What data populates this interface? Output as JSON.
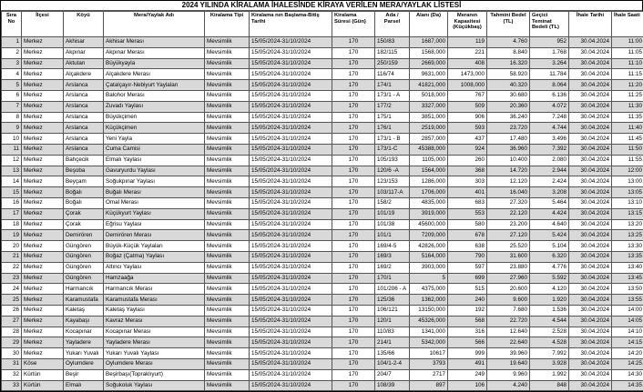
{
  "title": "2024 YILINDA KİRALAMA İHALESİNDE KİRAYA VERİLEN MERA/YAYLAK LİSTESİ",
  "table": {
    "columns": [
      {
        "label": "Sıra No"
      },
      {
        "label": "İlçesi"
      },
      {
        "label": "Köyü"
      },
      {
        "label": "Mera/Yaylak Adı"
      },
      {
        "label": "Kiralama Tipi"
      },
      {
        "label": "Kiralama nın Başlama-Bitiş Tarihi"
      },
      {
        "label": "Kiralama Süresi (Gün)"
      },
      {
        "label": "Ada / Parsel"
      },
      {
        "label": "Alanı (Da)"
      },
      {
        "label": "Meranın Kapasitesi (Küçükbaş)"
      },
      {
        "label": "Tahmini Bedel (TL)"
      },
      {
        "label": "Geçici Teminat Bedeli (TL)"
      },
      {
        "label": "İhale Tarihi"
      },
      {
        "label": "İhale Saati"
      }
    ],
    "rows": [
      [
        "1",
        "Merkez",
        "Akhisar",
        "Akhisar Merası",
        "Mevsimlik",
        "15/05/2024-31/10/2024",
        "170",
        "150/83",
        "1687,000",
        "119",
        "4.760",
        "952",
        "30.04.2024",
        "11:00"
      ],
      [
        "2",
        "Merkez",
        "Akpınar",
        "Akpınar Merası",
        "Mevsimlik",
        "15/05/2024-31/10/2024",
        "170",
        "182/115",
        "1568,000",
        "221",
        "8.840",
        "1.768",
        "30.04.2024",
        "11:05"
      ],
      [
        "3",
        "Merkez",
        "Aktutan",
        "Büyükyayla",
        "Mevsimlik",
        "15/05/2024-31/10/2024",
        "170",
        "250/159",
        "2669,000",
        "408",
        "16.320",
        "3.264",
        "30.04.2024",
        "11:10"
      ],
      [
        "4",
        "Merkez",
        "Alçakdere",
        "Alçakdere Merası",
        "Mevsimlik",
        "15/05/2024-31/10/2024",
        "170",
        "116/74",
        "9631,000",
        "1473,000",
        "58.920",
        "11.784",
        "30.04.2024",
        "11:15"
      ],
      [
        "5",
        "Merkez",
        "Arslanca",
        "Çatalçayır-Nebiyurt Yaylaları",
        "Mevsimlik",
        "15/05/2024-31/10/2024",
        "170",
        "174/1",
        "41821,000",
        "1008,000",
        "40.320",
        "8.064",
        "30.04.2024",
        "11:20"
      ],
      [
        "6",
        "Merkez",
        "Arslanca",
        "Balohor Merası",
        "Mevsimlik",
        "15/05/2024-31/10/2024",
        "170",
        "173/1 - A",
        "5018,000",
        "767",
        "30.680",
        "6.136",
        "30.04.2024",
        "11:25"
      ],
      [
        "7",
        "Merkez",
        "Arslanca",
        "Zuvadı Yaylası",
        "Mevsimlik",
        "15/05/2024-31/10/2024",
        "170",
        "177/2",
        "3327,000",
        "509",
        "20.360",
        "4.072",
        "30.04.2024",
        "11:30"
      ],
      [
        "8",
        "Merkez",
        "Arslanca",
        "Büyükçimen",
        "Mevsimlik",
        "15/05/2024-31/10/2024",
        "170",
        "175/1",
        "3851,000",
        "906",
        "36.240",
        "7.248",
        "30.04.2024",
        "11:35"
      ],
      [
        "9",
        "Merkez",
        "Arslanca",
        "Küçükçimen",
        "Mevsimlik",
        "15/05/2024-31/10/2024",
        "170",
        "176/1",
        "2519,000",
        "593",
        "23.720",
        "4.744",
        "30.04.2024",
        "11:40"
      ],
      [
        "10",
        "Merkez",
        "Arslanca",
        "Yeni Yayla",
        "Mevsimlik",
        "15/05/2024-31/10/2024",
        "170",
        "173/1 - B",
        "2857,000",
        "437",
        "17.480",
        "3.496",
        "30.04.2024",
        "11:45"
      ],
      [
        "11",
        "Merkez",
        "Arslanca",
        "Cuma Camisi",
        "Mevsimlik",
        "15/05/2024-31/10/2024",
        "170",
        "173/1-C",
        "45388,000",
        "924",
        "36.960",
        "7.392",
        "30.04.2024",
        "11:50"
      ],
      [
        "12",
        "Merkez",
        "Bahçecik",
        "Elmalı Yaylası",
        "Mevsimlik",
        "15/05/2024-31/10/2024",
        "170",
        "105/193",
        "1105,000",
        "260",
        "10.400",
        "2.080",
        "30.04.2024",
        "11:55"
      ],
      [
        "13",
        "Merkez",
        "Beşoba",
        "Gavuryurdu Yaylası",
        "Mevsimlik",
        "15/05/2024-31/10/2024",
        "170",
        "120/6 -A",
        "1564,000",
        "368",
        "14.720",
        "2.944",
        "30.04.2024",
        "12:00"
      ],
      [
        "14",
        "Merkez",
        "Beyçam",
        "Soğukpınar Yaylası",
        "Mevsimlik",
        "15/05/2024-31/10/2024",
        "170",
        "123/153",
        "1286,000",
        "303",
        "12.120",
        "2.424",
        "30.04.2024",
        "13:00"
      ],
      [
        "15",
        "Merkez",
        "Boğalı",
        "Buğalı Merası",
        "Mevsimlik",
        "15/05/2024-31/10/2024",
        "170",
        "103/117-A",
        "1706,000",
        "401",
        "16.040",
        "3.208",
        "30.04.2024",
        "13:05"
      ],
      [
        "16",
        "Merkez",
        "Boğalı",
        "Omal Merası",
        "Mevsimlik",
        "15/05/2024-31/10/2024",
        "170",
        "158/2",
        "4835,000",
        "683",
        "27.320",
        "5.464",
        "30.04.2024",
        "13:10"
      ],
      [
        "17",
        "Merkez",
        "Çorak",
        "Küçükyurt Yaylası",
        "Mevsimlik",
        "15/05/2024-31/10/2024",
        "170",
        "101/19",
        "3919,000",
        "553",
        "22.120",
        "4.424",
        "30.04.2024",
        "13:15"
      ],
      [
        "18",
        "Merkez",
        "Çorak",
        "Eğrisu Yaylası",
        "Mevsimlik",
        "15/05/2024-31/10/2024",
        "170",
        "101/38",
        "45600,000",
        "580",
        "23.200",
        "4.640",
        "30.04.2024",
        "13:20"
      ],
      [
        "19",
        "Merkez",
        "Demirören",
        "Demirören Merası",
        "Mevsimlik",
        "15/05/2024-31/10/2024",
        "170",
        "101/1",
        "7209,000",
        "678",
        "27.120",
        "5.424",
        "30.04.2024",
        "13:25"
      ],
      [
        "20",
        "Merkez",
        "Güngören",
        "Büyük-Küçük Yaylaları",
        "Mevsimlik",
        "15/05/2024-31/10/2024",
        "170",
        "169/4-5",
        "42826,000",
        "638",
        "25.520",
        "5.104",
        "30.04.2024",
        "13:30"
      ],
      [
        "21",
        "Merkez",
        "Güngören",
        "Boğaz (Çatma) Yaylası",
        "Mevsimlik",
        "15/05/2024-31/10/2024",
        "170",
        "169/3",
        "5164,000",
        "790",
        "31.600",
        "6.320",
        "30.04.2024",
        "13:35"
      ],
      [
        "22",
        "Merkez",
        "Güngören",
        "Altıncı Yaylası",
        "Mevsimlik",
        "15/05/2024-31/10/2024",
        "170",
        "169/2",
        "3903,000",
        "597",
        "23.880",
        "4.776",
        "30.04.2024",
        "13:40"
      ],
      [
        "23",
        "Merkez",
        "Güngören",
        "Hamzaağa",
        "Mevsimlik",
        "15/05/2024-31/10/2024",
        "170",
        "170/1",
        "5",
        "699",
        "27.960",
        "5.592",
        "30.04.2024",
        "13:45"
      ],
      [
        "24",
        "Merkez",
        "Harmancık",
        "Harmancık Merası",
        "Mevsimlik",
        "15/05/2024-31/10/2024",
        "170",
        "101/206 - A",
        "4375,000",
        "515",
        "20.600",
        "4.120",
        "30.04.2024",
        "13:50"
      ],
      [
        "25",
        "Merkez",
        "Karamustafa",
        "Karamustafa Merası",
        "Mevsimlik",
        "15/05/2024-31/10/2024",
        "170",
        "125/36",
        "1362,000",
        "240",
        "9.600",
        "1.920",
        "30.04.2024",
        "13:55"
      ],
      [
        "26",
        "Merkez",
        "Kaletaş",
        "Kaletaş Yaylası",
        "Mevsimlik",
        "15/05/2024-31/10/2024",
        "170",
        "106/121",
        "13150,000",
        "192",
        "7.680",
        "1.536",
        "30.04.2024",
        "14:00"
      ],
      [
        "27",
        "Merkez",
        "Kayabaşı",
        "Kavraz Merası",
        "Mevsimlik",
        "15/05/2024-31/10/2024",
        "170",
        "120/1",
        "45326,000",
        "568",
        "22.720",
        "4.544",
        "30.04.2024",
        "14:05"
      ],
      [
        "28",
        "Merkez",
        "Kocapınar",
        "Kocapınar Merası",
        "Mevsimlik",
        "15/05/2024-31/10/2024",
        "170",
        "110/83",
        "1341,000",
        "316",
        "12.640",
        "2.528",
        "30.04.2024",
        "14:10"
      ],
      [
        "29",
        "Merkez",
        "Yayladere",
        "Yayladere Merası",
        "Mevsimlik",
        "15/05/2024-31/10/2024",
        "170",
        "214/1",
        "5342,000",
        "566",
        "22.640",
        "4.528",
        "30.04.2024",
        "14:15"
      ],
      [
        "30",
        "Merkez",
        "Yukarı Yuvalı",
        "Yukarı Yuvalı Yaylası",
        "Mevsimlik",
        "15/05/2024-31/10/2024",
        "170",
        "135/66",
        "10617",
        "999",
        "39.960",
        "7.992",
        "30.04.2024",
        "14:20"
      ],
      [
        "31",
        "Köse",
        "Oylumdere",
        "Oylumdere Merası",
        "Mevsimlik",
        "15/05/2024-31/10/2024",
        "170",
        "104/1-2-4",
        "3793",
        "491",
        "19.640",
        "3.928",
        "30.04.2024",
        "14:25"
      ],
      [
        "32",
        "Kürtün",
        "Beşir",
        "Beşirbaşı(Topraklıyurt)",
        "Mevsimlik",
        "15/05/2024-31/10/2024",
        "170",
        "204/7",
        "2717",
        "249",
        "9.960",
        "1.992",
        "30.04.2024",
        "14:30"
      ],
      [
        "33",
        "Kürtün",
        "Elmalı",
        "Soğukoluk Yaylası",
        "Mevsimlik",
        "15/05/2024-31/10/2024",
        "170",
        "108/39",
        "897",
        "106",
        "4.240",
        "848",
        "30.04.2024",
        "14:35"
      ]
    ]
  },
  "colors": {
    "row_alt_background": "#d9d9d9",
    "row_background": "#ffffff",
    "border": "#555555",
    "text": "#000000"
  }
}
